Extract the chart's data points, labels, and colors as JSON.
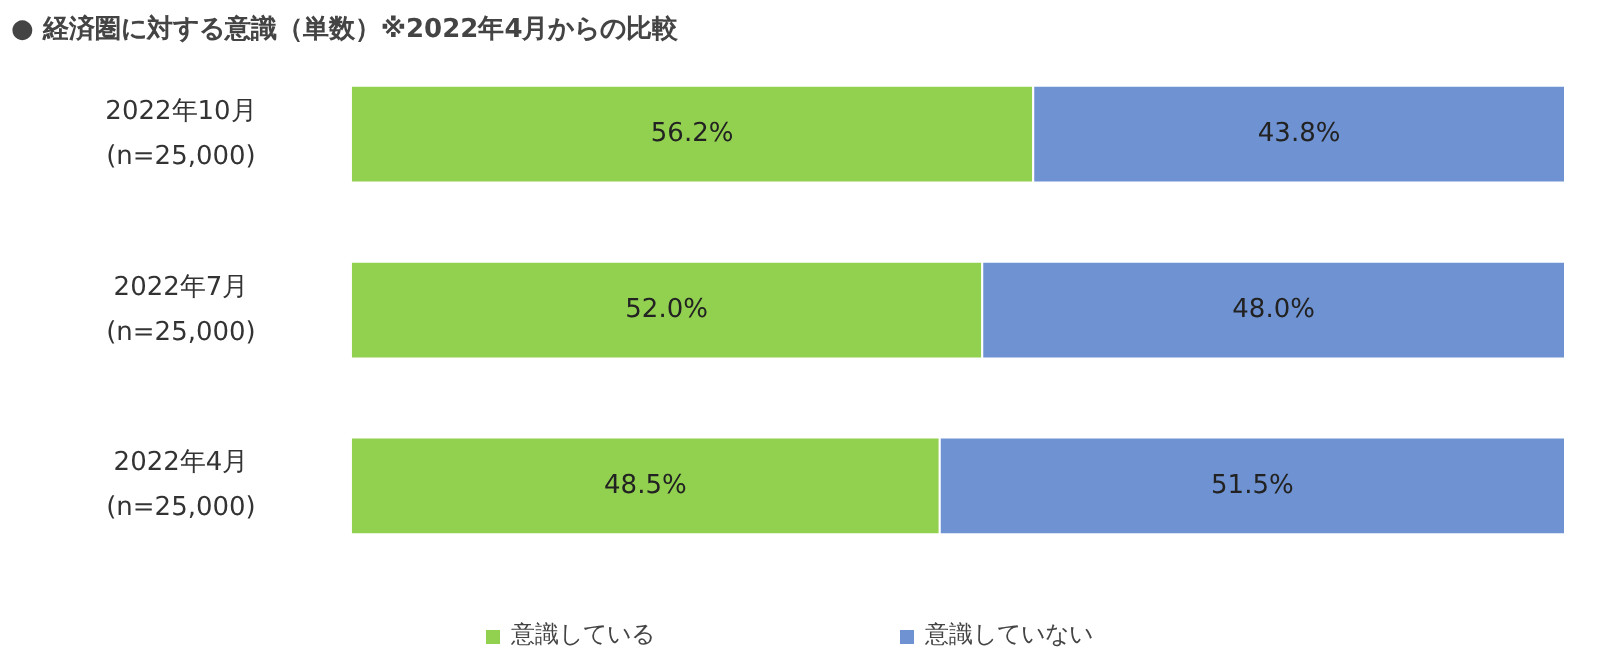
{
  "chart_data": {
    "type": "bar",
    "orientation": "horizontal",
    "stacked": true,
    "title": "●  経済圏に対する意識（単数）※2022年4月からの比較",
    "categories": [
      "2022年10月\n(n=25,000)",
      "2022年7月\n(n=25,000)",
      "2022年4月\n(n=25,000)"
    ],
    "series": [
      {
        "name": "意識している",
        "color": "#92d050",
        "values": [
          56.2,
          52.0,
          48.5
        ],
        "value_labels": [
          "56.2%",
          "52.0%",
          "48.5%"
        ]
      },
      {
        "name": "意識していない",
        "color": "#6f93d2",
        "values": [
          43.8,
          48.0,
          51.5
        ],
        "value_labels": [
          "43.8%",
          "48.0%",
          "51.5%"
        ]
      }
    ],
    "legend": "bottom",
    "grid": false
  }
}
